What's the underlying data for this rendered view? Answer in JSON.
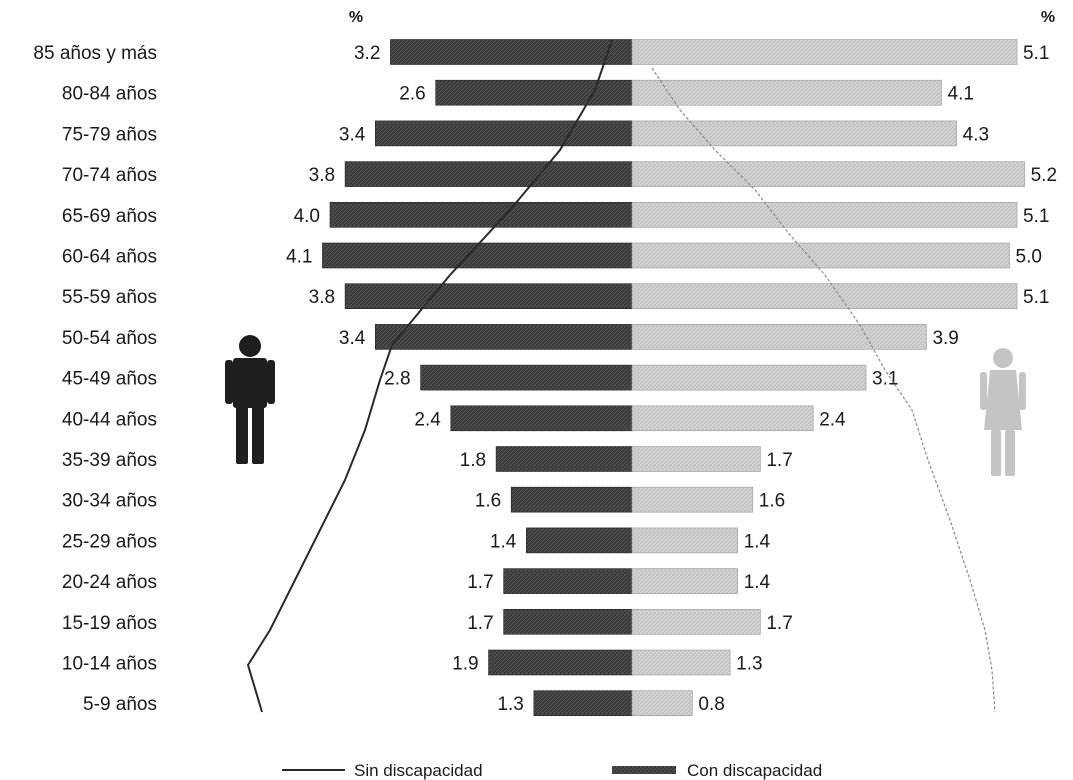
{
  "chart_data": {
    "type": "bar",
    "orientation": "horizontal",
    "layout": "population-pyramid",
    "unit": "%",
    "categories": [
      "85 años y más",
      "80-84 años",
      "75-79 años",
      "70-74 años",
      "65-69 años",
      "60-64 años",
      "55-59 años",
      "50-54 años",
      "45-49 años",
      "40-44 años",
      "35-39 años",
      "30-34 años",
      "25-29 años",
      "20-24 años",
      "15-19 años",
      "10-14 años",
      "5-9 años"
    ],
    "series": [
      {
        "side": "left",
        "values": [
          3.2,
          2.6,
          3.4,
          3.8,
          4.0,
          4.1,
          3.8,
          3.4,
          2.8,
          2.4,
          1.8,
          1.6,
          1.4,
          1.7,
          1.7,
          1.9,
          1.3
        ],
        "color": "#3a3a3a"
      },
      {
        "side": "right",
        "values": [
          5.1,
          4.1,
          4.3,
          5.2,
          5.1,
          5.0,
          5.1,
          3.9,
          3.1,
          2.4,
          1.7,
          1.6,
          1.4,
          1.4,
          1.7,
          1.3,
          0.8
        ],
        "color": "#cfcfcf"
      }
    ],
    "value_labels": {
      "left": [
        "3.2",
        "2.6",
        "3.4",
        "3.8",
        "4.0",
        "4.1",
        "3.8",
        "3.4",
        "2.8",
        "2.4",
        "1.8",
        "1.6",
        "1.4",
        "1.7",
        "1.7",
        "1.9",
        "1.3"
      ],
      "right": [
        "5.1",
        "4.1",
        "4.3",
        "5.2",
        "5.1",
        "5.0",
        "5.1",
        "3.9",
        "3.1",
        "2.4",
        "1.7",
        "1.6",
        "1.4",
        "1.4",
        "1.7",
        "1.3",
        "0.8"
      ]
    },
    "axis_unit_left": "%",
    "axis_unit_right": "%",
    "xlim": [
      0,
      5.5
    ],
    "overlay_lines": {
      "left": {
        "line_color": "#2a2a2a"
      },
      "right": {
        "line_color": "#8a8a8a"
      }
    },
    "legend": {
      "placement": "bottom",
      "items": [
        {
          "label": "Sin discapacidad",
          "style": "line"
        },
        {
          "label": "Con discapacidad",
          "style": "bar"
        }
      ]
    },
    "icons": {
      "left": "male-figure-icon",
      "right": "female-figure-icon"
    }
  }
}
